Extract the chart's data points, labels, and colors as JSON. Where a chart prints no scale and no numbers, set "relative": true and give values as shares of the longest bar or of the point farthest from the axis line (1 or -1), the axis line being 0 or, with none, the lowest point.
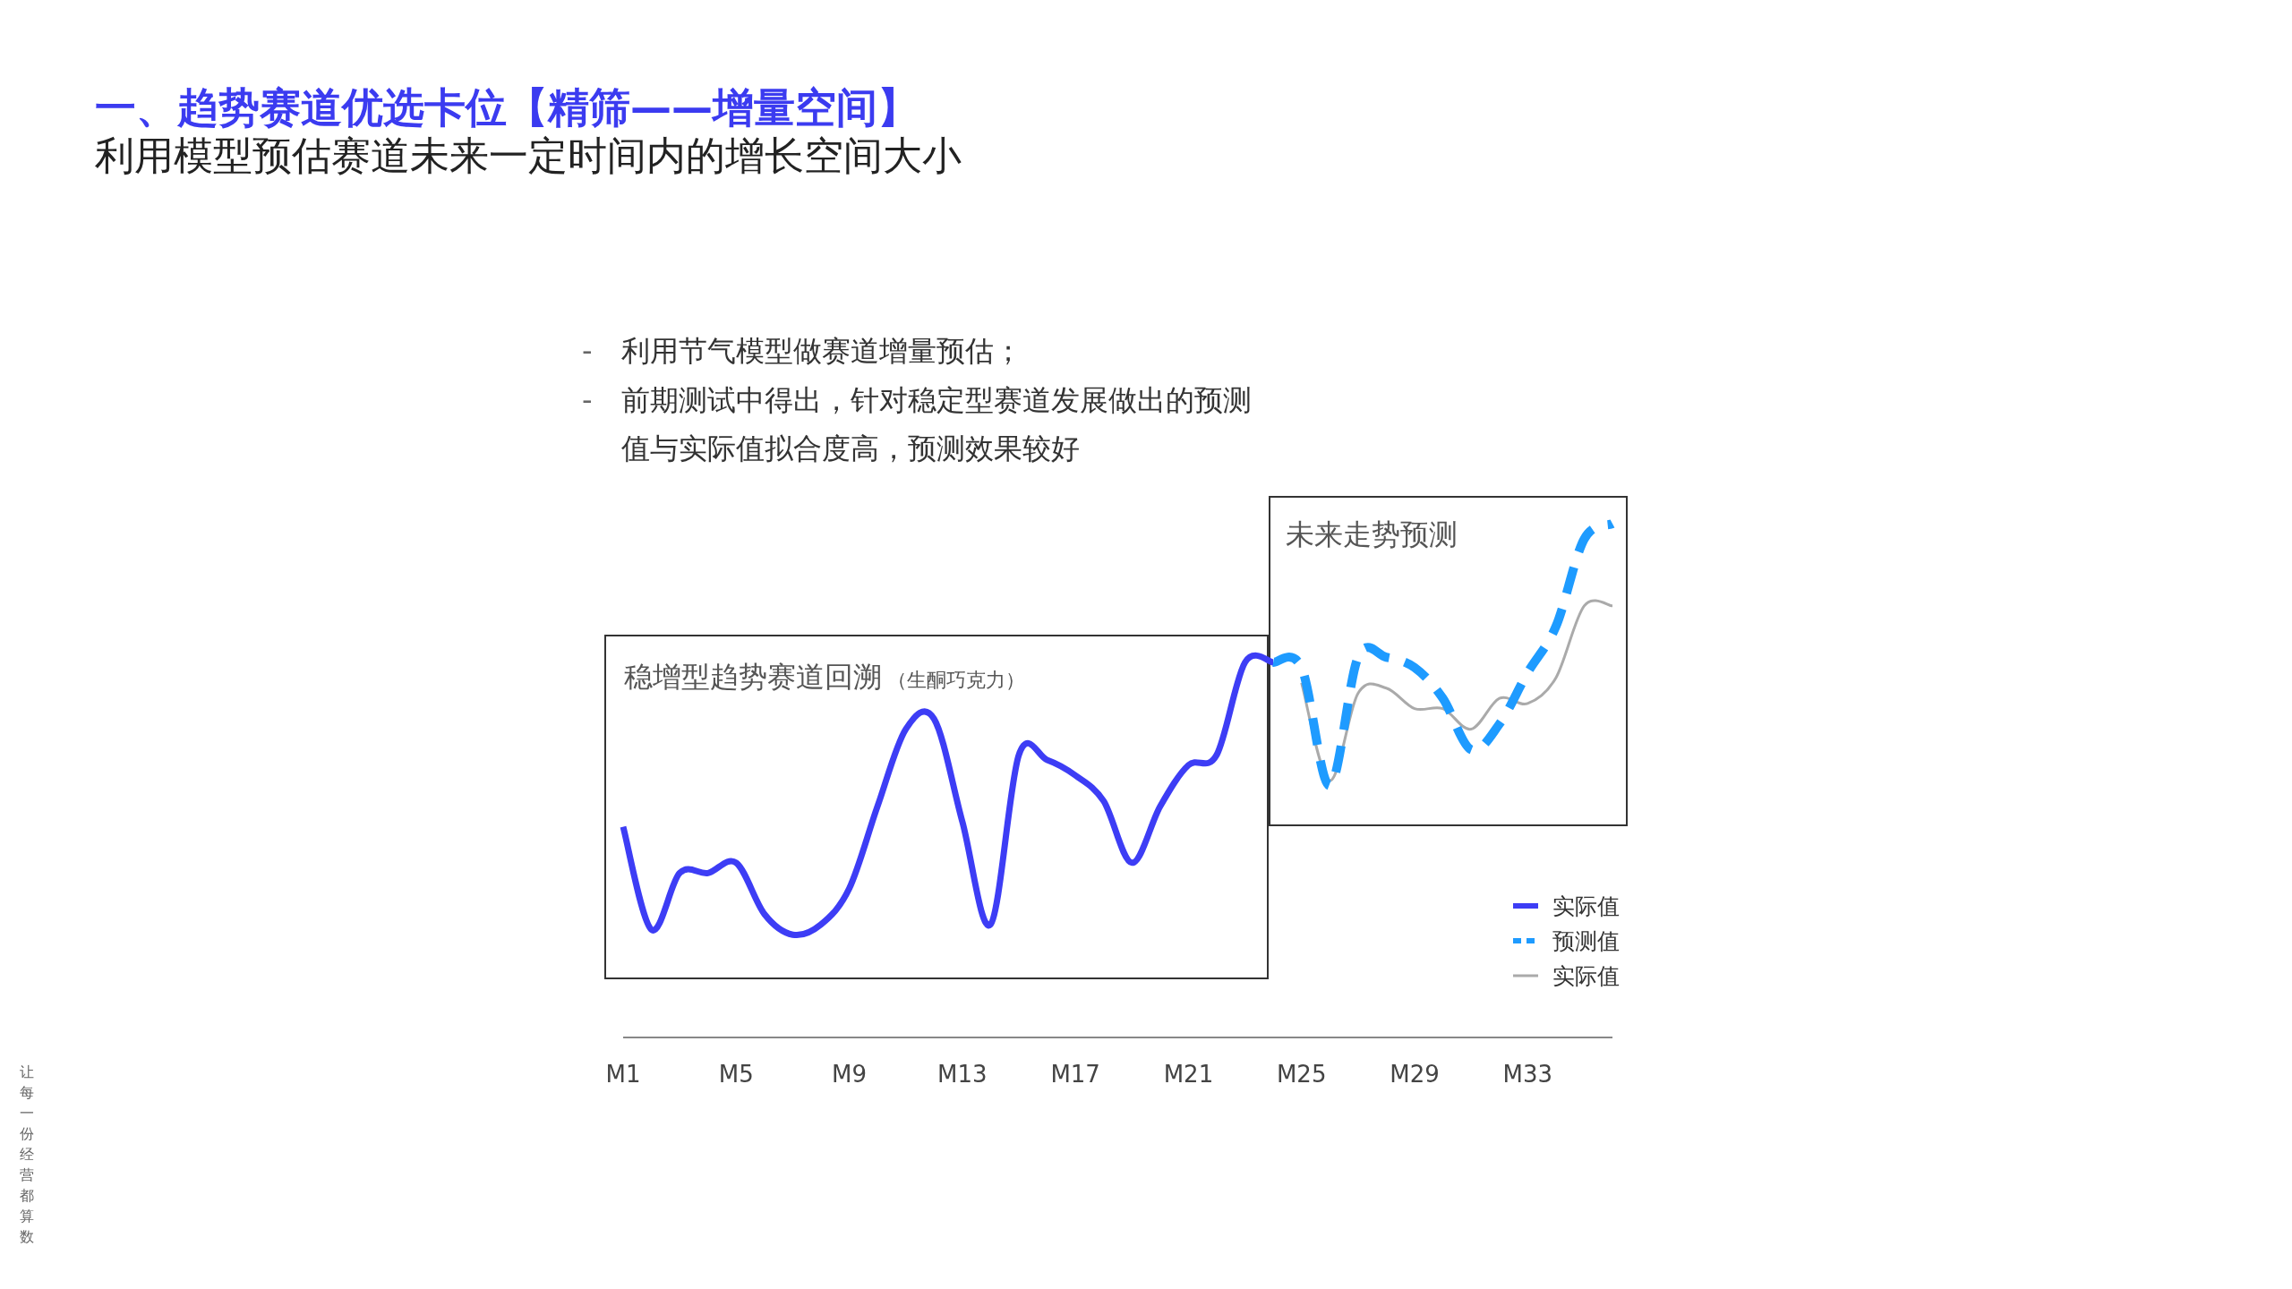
{
  "chart_data": {
    "type": "line",
    "relative": true,
    "title": "一、趋势赛道优选卡位【精筛——增量空间】",
    "subtitle": "利用模型预估赛道未来一定时间内的增长空间大小",
    "annotations": [
      "-",
      "利用节气模型做赛道增量预估；",
      "-",
      "前期测试中得出，针对稳定型赛道发展做出的预测值与实际值拟合度高，预测效果较好",
      "稳增型趋势赛道回溯",
      "（生酮巧克力）",
      "未来走势预测",
      "让每一份经营都算数"
    ],
    "categories": [
      "M1",
      null,
      null,
      null,
      "M5",
      null,
      null,
      null,
      "M9",
      null,
      null,
      null,
      "M13",
      null,
      null,
      null,
      "M17",
      null,
      null,
      null,
      "M21",
      null,
      null,
      null,
      "M25",
      null,
      null,
      null,
      "M29",
      null,
      null,
      null,
      "M33",
      null,
      null,
      null
    ],
    "legend": "bottom right",
    "grid": false,
    "series": [
      {
        "name": "实际值",
        "color": "#3d3df5",
        "line_style": "solid",
        "values": [
          0.41,
          0.21,
          0.32,
          0.32,
          0.34,
          0.24,
          0.2,
          0.22,
          0.29,
          0.45,
          0.6,
          0.62,
          0.42,
          0.22,
          0.55,
          0.54,
          0.51,
          0.46,
          0.34,
          0.45,
          0.53,
          0.55,
          0.73,
          0.73,
          null,
          null,
          null,
          null,
          null,
          null,
          null,
          null,
          null,
          null,
          null,
          null
        ]
      },
      {
        "name": "预测值",
        "color": "#1e9bff",
        "line_style": "dashed",
        "values": [
          null,
          null,
          null,
          null,
          null,
          null,
          null,
          null,
          null,
          null,
          null,
          null,
          null,
          null,
          null,
          null,
          null,
          null,
          null,
          null,
          null,
          null,
          null,
          0.73,
          0.72,
          0.49,
          0.74,
          0.74,
          0.72,
          0.66,
          0.56,
          0.61,
          0.71,
          0.8,
          0.97,
          1.0
        ]
      },
      {
        "name": "实际值",
        "color": "#aaaaaa",
        "line_style": "solid",
        "values": [
          null,
          null,
          null,
          null,
          null,
          null,
          null,
          null,
          null,
          null,
          null,
          null,
          null,
          null,
          null,
          null,
          null,
          null,
          null,
          null,
          null,
          null,
          null,
          null,
          0.69,
          0.5,
          0.67,
          0.68,
          0.64,
          0.64,
          0.6,
          0.66,
          0.65,
          0.7,
          0.84,
          0.84
        ]
      }
    ]
  }
}
